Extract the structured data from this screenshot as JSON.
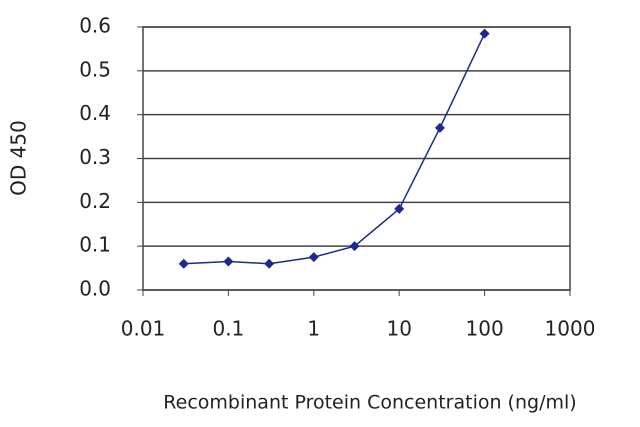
{
  "chart_data": {
    "type": "line",
    "xlabel": "Recombinant Protein Concentration (ng/ml)",
    "ylabel": "OD 450",
    "x": [
      0.03,
      0.1,
      0.3,
      1,
      3,
      10,
      30,
      100
    ],
    "series": [
      {
        "name": "OD 450",
        "color": "#1c2a8c",
        "values": [
          0.06,
          0.065,
          0.06,
          0.075,
          0.1,
          0.185,
          0.37,
          0.585
        ]
      }
    ],
    "xscale": "log",
    "xlim": [
      0.01,
      1000
    ],
    "xticks": [
      0.01,
      0.1,
      1,
      10,
      100,
      1000
    ],
    "ylim": [
      0,
      0.6
    ],
    "yticks": [
      {
        "value": 0,
        "label": "0.0"
      },
      0.1,
      0.2,
      0.3,
      0.4,
      0.5,
      0.6
    ],
    "grid": true
  }
}
